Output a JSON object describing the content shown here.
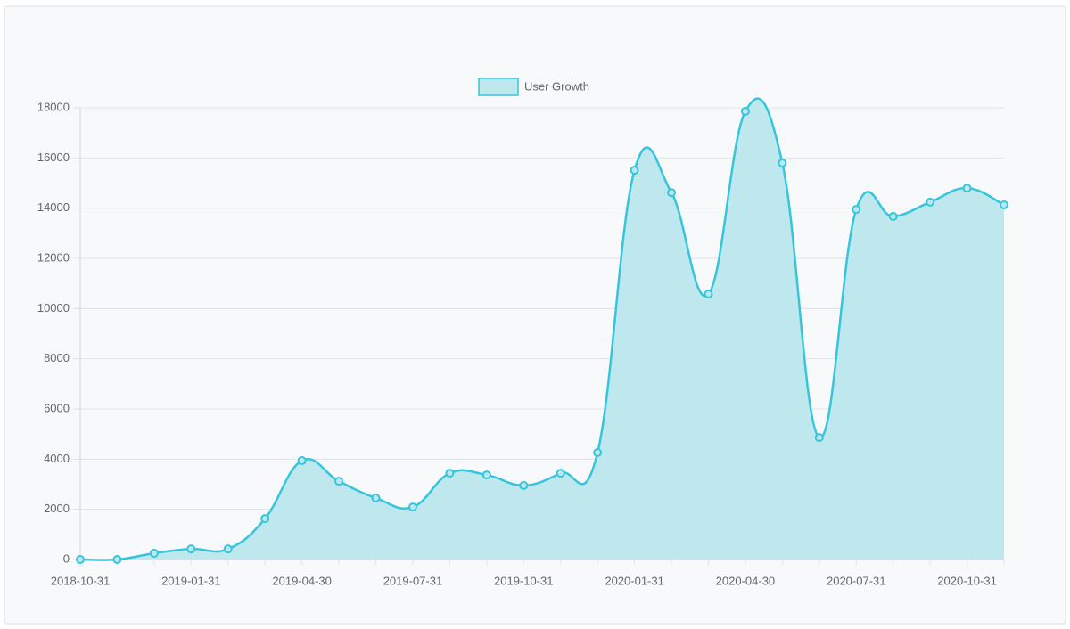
{
  "chart_data": {
    "type": "area",
    "categories": [
      "2018-10-31",
      null,
      null,
      "2019-01-31",
      null,
      null,
      "2019-04-30",
      null,
      null,
      "2019-07-31",
      null,
      null,
      "2019-10-31",
      null,
      null,
      "2020-01-31",
      null,
      null,
      "2020-04-30",
      null,
      null,
      "2020-07-31",
      null,
      null,
      "2020-10-31",
      null
    ],
    "series": [
      {
        "name": "User Growth",
        "color": "#36c6dc",
        "fill": "#bee7ee",
        "values": [
          0,
          0,
          250,
          420,
          420,
          1630,
          3940,
          3120,
          2450,
          2090,
          3440,
          3370,
          2950,
          3440,
          4260,
          15510,
          14620,
          10580,
          17860,
          15800,
          4860,
          13950,
          13670,
          14240,
          14800,
          14130
        ]
      }
    ],
    "ylim": [
      0,
      18000
    ],
    "yticks": [
      0,
      2000,
      4000,
      6000,
      8000,
      10000,
      12000,
      14000,
      16000,
      18000
    ],
    "grid": true,
    "legend": "top"
  }
}
